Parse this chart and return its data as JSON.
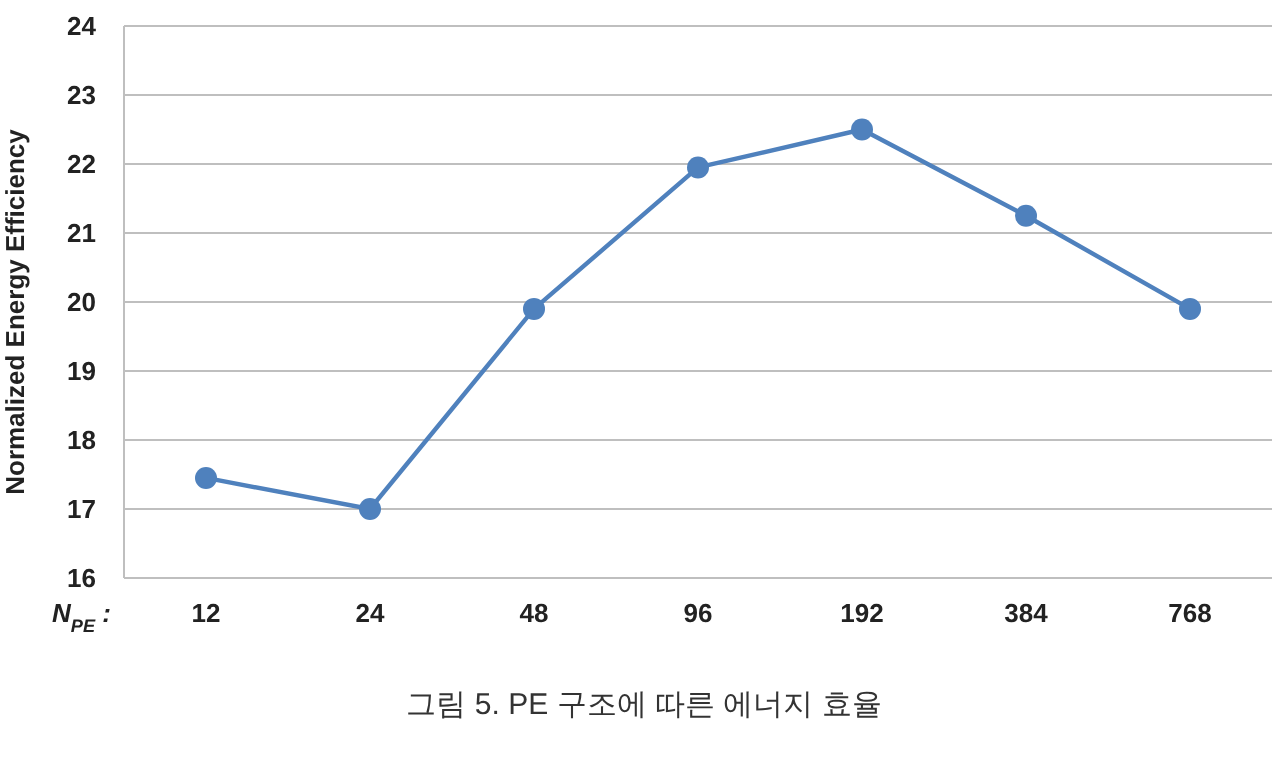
{
  "chart_data": {
    "type": "line",
    "title": "그림 5. PE 구조에 따른 에너지 효율",
    "xlabel": "N$_{PE}$ :",
    "ylabel": "Normalized Energy Efficiency",
    "categories": [
      "12",
      "24",
      "48",
      "96",
      "192",
      "384",
      "768"
    ],
    "series": [
      {
        "color": "#4f81bd",
        "values": [
          17.45,
          17.0,
          19.9,
          21.95,
          22.5,
          21.25,
          19.9
        ]
      }
    ],
    "ylim": [
      16,
      24
    ],
    "yticks": [
      16,
      17,
      18,
      19,
      20,
      21,
      22,
      23,
      24
    ],
    "grid": "y",
    "marker": "circle",
    "line_style": "solid"
  }
}
